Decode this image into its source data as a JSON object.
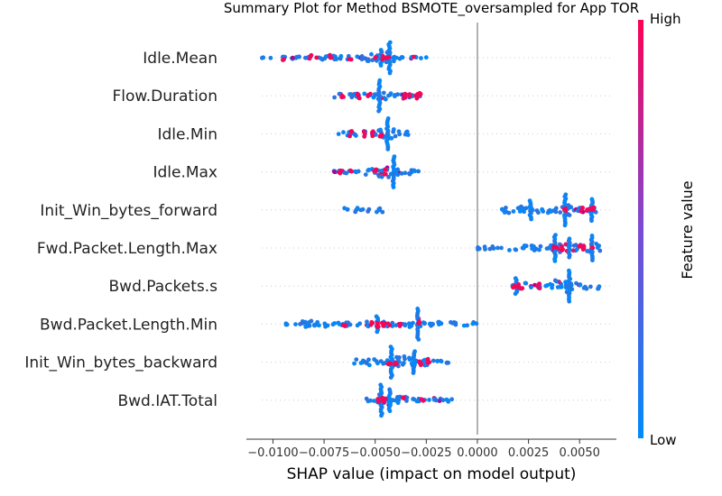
{
  "chart_data": {
    "type": "scatter",
    "title": "Summary Plot for Method BSMOTE_oversampled for App TOR",
    "xlabel": "SHAP value (impact on model output)",
    "xlim": [
      -0.0113,
      0.0068
    ],
    "x_ticks": [
      -0.01,
      -0.0075,
      -0.005,
      -0.0025,
      0.0,
      0.0025,
      0.005
    ],
    "x_tick_labels": [
      "−0.0100",
      "−0.0075",
      "−0.0050",
      "−0.0025",
      "0.0000",
      "0.0025",
      "0.0050"
    ],
    "zero_line": 0.0,
    "colorbar": {
      "label": "Feature value",
      "high_label": "High",
      "low_label": "Low",
      "low_color": "#008bfb",
      "high_color": "#ff0052"
    },
    "features": [
      {
        "name": "Idle.Mean",
        "segments": [
          [
            -0.0108,
            -0.0103,
            0.05,
            0.3
          ],
          [
            -0.0103,
            -0.008,
            0.18,
            0.35
          ],
          [
            -0.008,
            -0.0055,
            0.32,
            0.55
          ],
          [
            -0.0055,
            -0.0045,
            0.55,
            0.45
          ],
          [
            -0.0045,
            -0.004,
            0.85,
            0.35
          ],
          [
            -0.004,
            -0.0032,
            0.25,
            0.35
          ],
          [
            -0.0032,
            -0.0025,
            0.15,
            0.2
          ]
        ],
        "spikes": [
          [
            -0.0043,
            1.0
          ],
          [
            -0.0047,
            0.5
          ]
        ],
        "hot": [
          -0.0095,
          -0.0082,
          -0.0072,
          -0.0062,
          -0.005,
          -0.0046,
          -0.0044
        ]
      },
      {
        "name": "Flow.Duration",
        "segments": [
          [
            -0.0071,
            -0.006,
            0.3,
            0.25
          ],
          [
            -0.006,
            -0.005,
            0.4,
            0.35
          ],
          [
            -0.005,
            -0.004,
            0.6,
            0.3
          ],
          [
            -0.004,
            -0.003,
            0.45,
            0.6
          ],
          [
            -0.003,
            -0.0027,
            0.3,
            0.7
          ]
        ],
        "spikes": [
          [
            -0.0048,
            1.0
          ]
        ],
        "hot": [
          -0.0066,
          -0.0058,
          -0.0053,
          -0.0036,
          -0.0033,
          -0.003,
          -0.0028
        ]
      },
      {
        "name": "Idle.Min",
        "segments": [
          [
            -0.0068,
            -0.0058,
            0.3,
            0.3
          ],
          [
            -0.0058,
            -0.0049,
            0.45,
            0.4
          ],
          [
            -0.0049,
            -0.004,
            0.75,
            0.25
          ],
          [
            -0.004,
            -0.0032,
            0.4,
            0.15
          ]
        ],
        "spikes": [
          [
            -0.0044,
            1.0
          ]
        ],
        "hot": [
          -0.0062,
          -0.0055,
          -0.0051,
          -0.0047
        ]
      },
      {
        "name": "Idle.Max",
        "segments": [
          [
            -0.0071,
            -0.006,
            0.3,
            0.4
          ],
          [
            -0.006,
            -0.005,
            0.45,
            0.35
          ],
          [
            -0.005,
            -0.004,
            0.85,
            0.45
          ],
          [
            -0.004,
            -0.0028,
            0.5,
            0.2
          ]
        ],
        "spikes": [
          [
            -0.0041,
            1.0
          ]
        ],
        "hot": [
          -0.0067,
          -0.0062,
          -0.005,
          -0.0045
        ]
      },
      {
        "name": "Init_Win_bytes_forward",
        "segments": [
          [
            -0.0066,
            -0.0063,
            0.4,
            0.0
          ],
          [
            -0.006,
            -0.0046,
            0.35,
            0.05
          ],
          [
            0.0012,
            0.003,
            0.55,
            0.2
          ],
          [
            0.003,
            0.004,
            0.45,
            0.35
          ],
          [
            0.004,
            0.0046,
            0.95,
            0.5
          ],
          [
            0.0046,
            0.0056,
            0.35,
            0.45
          ],
          [
            0.0056,
            0.0058,
            0.65,
            0.9
          ]
        ],
        "spikes": [
          [
            0.0043,
            1.0
          ],
          [
            0.0026,
            0.6
          ],
          [
            0.0056,
            0.7
          ]
        ],
        "hot": [
          0.0043,
          0.0051,
          0.0054,
          0.0056,
          0.0057
        ]
      },
      {
        "name": "Fwd.Packet.Length.Max",
        "segments": [
          [
            0.0,
            0.0015,
            0.25,
            0.1
          ],
          [
            0.0015,
            0.0035,
            0.4,
            0.25
          ],
          [
            0.0035,
            0.0046,
            0.7,
            0.5
          ],
          [
            0.0046,
            0.0054,
            0.5,
            0.6
          ],
          [
            0.0054,
            0.006,
            0.7,
            0.5
          ]
        ],
        "spikes": [
          [
            0.0038,
            0.85
          ],
          [
            0.0045,
            0.6
          ],
          [
            0.0056,
            0.8
          ]
        ],
        "hot": [
          0.0038,
          0.0042,
          0.005,
          0.0052,
          0.0056
        ]
      },
      {
        "name": "Bwd.Packets.s",
        "segments": [
          [
            0.0017,
            0.0024,
            0.6,
            0.8
          ],
          [
            0.0024,
            0.0038,
            0.3,
            0.35
          ],
          [
            0.0038,
            0.0048,
            0.95,
            0.25
          ],
          [
            0.0048,
            0.006,
            0.45,
            0.15
          ]
        ],
        "spikes": [
          [
            0.0045,
            1.0
          ],
          [
            0.0019,
            0.5
          ]
        ],
        "hot": [
          0.0018,
          0.002,
          0.0022,
          0.003
        ]
      },
      {
        "name": "Bwd.Packet.Length.Min",
        "segments": [
          [
            -0.0094,
            -0.0093,
            0.1,
            0.0
          ],
          [
            -0.0089,
            -0.007,
            0.5,
            0.15
          ],
          [
            -0.007,
            -0.0055,
            0.3,
            0.3
          ],
          [
            -0.0055,
            -0.0045,
            0.45,
            0.6
          ],
          [
            -0.0045,
            -0.003,
            0.45,
            0.5
          ],
          [
            -0.003,
            -0.0027,
            0.9,
            0.45
          ],
          [
            -0.0027,
            0.0003,
            0.35,
            0.1
          ]
        ],
        "spikes": [
          [
            -0.0029,
            1.0
          ],
          [
            -0.0049,
            0.5
          ]
        ],
        "hot": [
          -0.0065,
          -0.0052,
          -0.0049,
          -0.0046,
          -0.0038,
          -0.0029
        ]
      },
      {
        "name": "Init_Win_bytes_backward",
        "segments": [
          [
            -0.0062,
            -0.005,
            0.5,
            0.1
          ],
          [
            -0.005,
            -0.004,
            0.55,
            0.15
          ],
          [
            -0.004,
            -0.003,
            0.9,
            0.3
          ],
          [
            -0.003,
            -0.002,
            0.5,
            0.25
          ],
          [
            -0.002,
            -0.001,
            0.3,
            0.15
          ]
        ],
        "spikes": [
          [
            -0.0042,
            1.0
          ],
          [
            -0.0031,
            0.7
          ]
        ],
        "hot": [
          -0.0043,
          -0.004,
          -0.0028,
          -0.0024
        ]
      },
      {
        "name": "Bwd.IAT.Total",
        "segments": [
          [
            -0.0055,
            -0.005,
            0.3,
            0.1
          ],
          [
            -0.005,
            -0.004,
            0.9,
            0.85
          ],
          [
            -0.004,
            -0.003,
            0.55,
            0.35
          ],
          [
            -0.003,
            -0.001,
            0.35,
            0.2
          ]
        ],
        "spikes": [
          [
            -0.0047,
            1.0
          ],
          [
            -0.0043,
            0.7
          ]
        ],
        "hot": [
          -0.0048,
          -0.0046,
          -0.0045,
          -0.0036,
          -0.0027
        ]
      }
    ]
  }
}
